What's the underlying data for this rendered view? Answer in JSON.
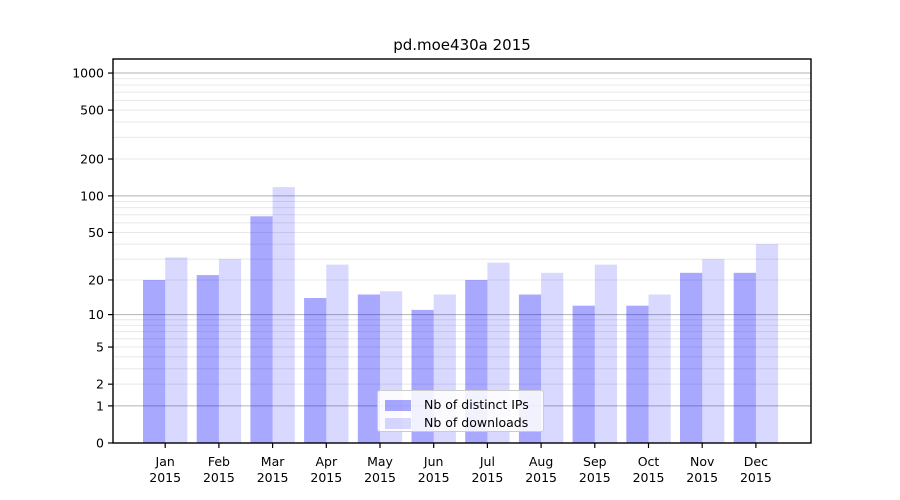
{
  "chart_data": {
    "type": "bar",
    "title": "pd.moe430a 2015",
    "categories": [
      "Jan",
      "Feb",
      "Mar",
      "Apr",
      "May",
      "Jun",
      "Jul",
      "Aug",
      "Sep",
      "Oct",
      "Nov",
      "Dec"
    ],
    "x_year": "2015",
    "series": [
      {
        "name": "Nb of distinct IPs",
        "color": "#0000FF",
        "opacity": 0.34,
        "values": [
          20,
          22,
          68,
          14,
          15,
          11,
          20,
          15,
          12,
          12,
          23,
          23
        ]
      },
      {
        "name": "Nb of downloads",
        "color": "#0000FF",
        "opacity": 0.15,
        "values": [
          31,
          30,
          118,
          27,
          16,
          15,
          28,
          23,
          27,
          15,
          30,
          40
        ]
      }
    ],
    "xlabel": "",
    "ylabel": "",
    "y_ticks": [
      0,
      1,
      2,
      5,
      10,
      20,
      50,
      100,
      200,
      500,
      1000
    ],
    "ylim": [
      0,
      1000
    ],
    "y_scale": "log1p",
    "grid": "on",
    "legend_position": "lower-center-inside",
    "colors": {
      "background": "#ffffff",
      "axis": "#000000",
      "tick_text": "#000000",
      "major_grid": "#b3b3b3",
      "minor_grid": "#e8e8e8",
      "legend_border": "#cccccc"
    }
  }
}
